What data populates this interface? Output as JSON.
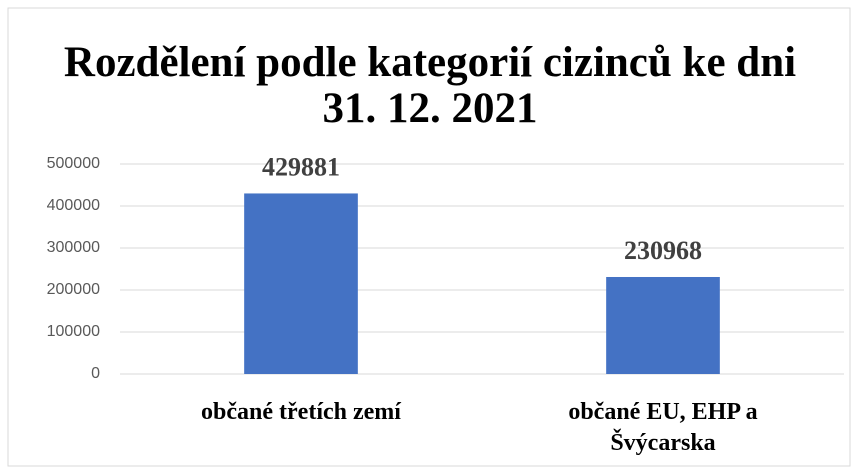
{
  "chart_data": {
    "type": "bar",
    "title": "Rozdělení podle kategorií cizinců ke dni 31. 12. 2021",
    "categories": [
      "občané třetích zemí",
      "občané EU, EHP a Švýcarska"
    ],
    "values": [
      429881,
      230968
    ],
    "color": "#4472c4",
    "ylim": [
      0,
      500000
    ],
    "yticks": [
      0,
      100000,
      200000,
      300000,
      400000,
      500000
    ],
    "grid": true
  }
}
